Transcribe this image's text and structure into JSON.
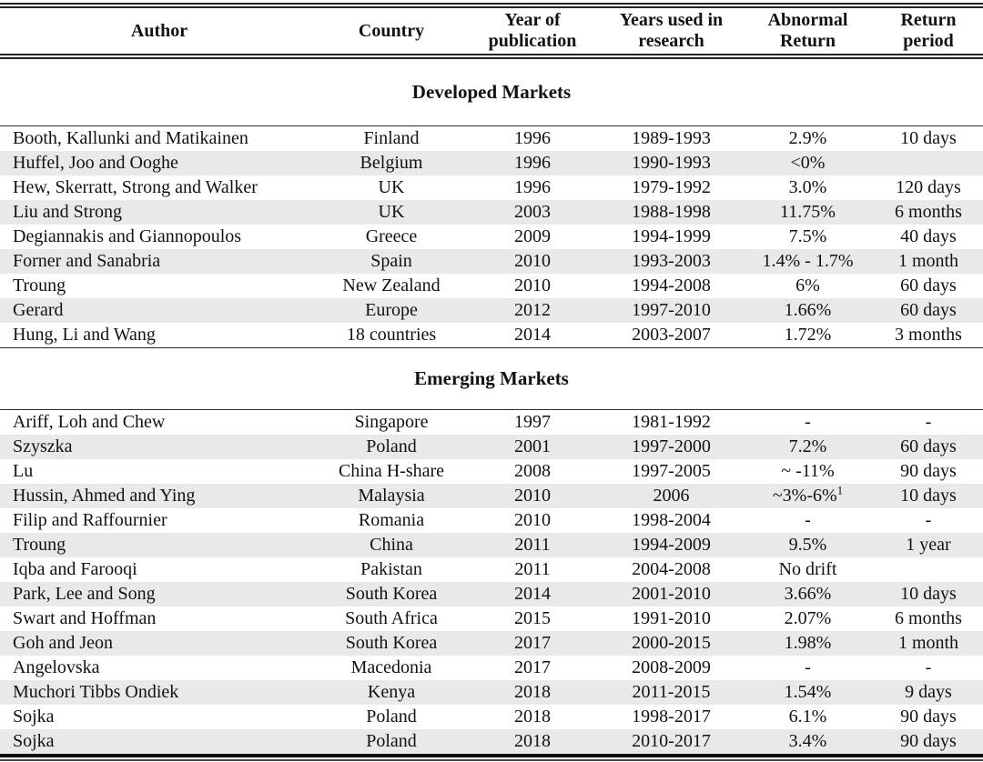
{
  "table": {
    "columns": [
      "Author",
      "Country",
      "Year of publication",
      "Years used in research",
      "Abnormal Return",
      "Return period"
    ],
    "sections": [
      {
        "heading": "Developed Markets",
        "rows": [
          [
            "Booth, Kallunki and Matikainen",
            "Finland",
            "1996",
            "1989-1993",
            "2.9%",
            "10 days"
          ],
          [
            "Huffel, Joo and Ooghe",
            "Belgium",
            "1996",
            "1990-1993",
            "<0%",
            ""
          ],
          [
            "Hew, Skerratt, Strong and Walker",
            "UK",
            "1996",
            "1979-1992",
            "3.0%",
            "120 days"
          ],
          [
            "Liu and Strong",
            "UK",
            "2003",
            "1988-1998",
            "11.75%",
            "6 months"
          ],
          [
            "Degiannakis and Giannopoulos",
            "Greece",
            "2009",
            "1994-1999",
            "7.5%",
            "40 days"
          ],
          [
            "Forner and Sanabria",
            "Spain",
            "2010",
            "1993-2003",
            "1.4% - 1.7%",
            "1 month"
          ],
          [
            "Troung",
            "New Zealand",
            "2010",
            "1994-2008",
            "6%",
            "60 days"
          ],
          [
            "Gerard",
            "Europe",
            "2012",
            "1997-2010",
            "1.66%",
            "60 days"
          ],
          [
            "Hung, Li and Wang",
            "18 countries",
            "2014",
            "2003-2007",
            "1.72%",
            "3 months"
          ]
        ]
      },
      {
        "heading": "Emerging Markets",
        "rows": [
          [
            "Ariff, Loh and Chew",
            "Singapore",
            "1997",
            "1981-1992",
            "-",
            "-"
          ],
          [
            "Szyszka",
            "Poland",
            "2001",
            "1997-2000",
            "7.2%",
            "60 days"
          ],
          [
            "Lu",
            "China H-share",
            "2008",
            "1997-2005",
            "~ -11%",
            "90 days"
          ],
          [
            "Hussin, Ahmed and Ying",
            "Malaysia",
            "2010",
            "2006",
            {
              "text": "~3%-6%",
              "sup": "1"
            },
            "10 days"
          ],
          [
            "Filip and Raffournier",
            "Romania",
            "2010",
            "1998-2004",
            "-",
            "-"
          ],
          [
            "Troung",
            "China",
            "2011",
            "1994-2009",
            "9.5%",
            "1 year"
          ],
          [
            "Iqba and Farooqi",
            "Pakistan",
            "2011",
            "2004-2008",
            "No drift",
            ""
          ],
          [
            "Park, Lee and Song",
            "South Korea",
            "2014",
            "2001-2010",
            "3.66%",
            "10 days"
          ],
          [
            "Swart and Hoffman",
            "South Africa",
            "2015",
            "1991-2010",
            "2.07%",
            "6 months"
          ],
          [
            "Goh and Jeon",
            "South Korea",
            "2017",
            "2000-2015",
            "1.98%",
            "1 month"
          ],
          [
            "Angelovska",
            "Macedonia",
            "2017",
            "2008-2009",
            "-",
            "-"
          ],
          [
            "Muchori Tibbs Ondiek",
            "Kenya",
            "2018",
            "2011-2015",
            "1.54%",
            "9 days"
          ],
          [
            "Sojka",
            "Poland",
            "2018",
            "1998-2017",
            "6.1%",
            "90 days"
          ],
          [
            "Sojka",
            "Poland",
            "2018",
            "2010-2017",
            "3.4%",
            "90 days"
          ]
        ]
      }
    ]
  },
  "colors": {
    "row_alt": "#e9e9e9",
    "text": "#121212",
    "rule": "#232323"
  }
}
